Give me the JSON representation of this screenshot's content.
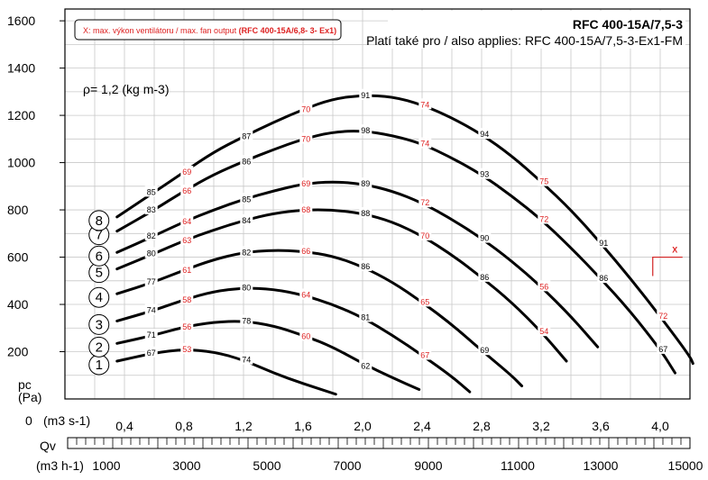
{
  "header": {
    "model": "RFC 400-15A/7,5-3",
    "also_applies": "Platí také pro / also applies: RFC 400-15A/7,5-3-Ex1-FM",
    "note_prefix": "X: max. výkon ventilátoru / max. fan output",
    "note_model": "(RFC 400-15A/6,8- 3- Ex1)"
  },
  "density_label": "ρ= 1,2 (kg m-3)",
  "axes": {
    "y_label_main": "pc",
    "y_label_unit": "(Pa)",
    "x1_unit": "(m3 s-1)",
    "x2_label": "Qv",
    "x3_unit": "(m3 h-1)",
    "zero_label": "0"
  },
  "chart_data": {
    "type": "line",
    "title": "RFC 400-15A/7,5-3",
    "xlabel": "Qv (m3 s-1)",
    "ylabel": "pc (Pa)",
    "xlim": [
      0,
      4.2
    ],
    "ylim": [
      0,
      1650
    ],
    "x_ticks": [
      "0,4",
      "0,8",
      "1,2",
      "1,6",
      "2,0",
      "2,4",
      "2,8",
      "3,2",
      "3,6",
      "4,0"
    ],
    "y_ticks": [
      "200",
      "400",
      "600",
      "800",
      "1000",
      "1200",
      "1400",
      "1600"
    ],
    "x_ticks_m3h": [
      "1000",
      "3000",
      "5000",
      "7000",
      "9000",
      "11000",
      "13000",
      "15000"
    ],
    "series": [
      {
        "name": "1",
        "points": [
          [
            0.35,
            160
          ],
          [
            0.6,
            195
          ],
          [
            0.8,
            210
          ],
          [
            1.0,
            200
          ],
          [
            1.2,
            165
          ],
          [
            1.4,
            110
          ],
          [
            1.6,
            65
          ],
          [
            1.82,
            20
          ]
        ]
      },
      {
        "name": "2",
        "points": [
          [
            0.35,
            235
          ],
          [
            0.6,
            270
          ],
          [
            0.8,
            305
          ],
          [
            1.0,
            325
          ],
          [
            1.2,
            330
          ],
          [
            1.4,
            310
          ],
          [
            1.6,
            270
          ],
          [
            1.8,
            220
          ],
          [
            2.0,
            150
          ],
          [
            2.2,
            90
          ],
          [
            2.38,
            40
          ]
        ]
      },
      {
        "name": "3",
        "points": [
          [
            0.35,
            330
          ],
          [
            0.6,
            375
          ],
          [
            0.8,
            420
          ],
          [
            1.0,
            455
          ],
          [
            1.2,
            470
          ],
          [
            1.4,
            465
          ],
          [
            1.6,
            440
          ],
          [
            1.8,
            400
          ],
          [
            2.0,
            345
          ],
          [
            2.2,
            270
          ],
          [
            2.4,
            185
          ],
          [
            2.6,
            95
          ],
          [
            2.72,
            30
          ]
        ]
      },
      {
        "name": "4",
        "points": [
          [
            0.35,
            445
          ],
          [
            0.6,
            495
          ],
          [
            0.8,
            545
          ],
          [
            1.0,
            590
          ],
          [
            1.2,
            620
          ],
          [
            1.4,
            630
          ],
          [
            1.6,
            625
          ],
          [
            1.8,
            605
          ],
          [
            2.0,
            560
          ],
          [
            2.2,
            495
          ],
          [
            2.4,
            410
          ],
          [
            2.6,
            315
          ],
          [
            2.8,
            205
          ],
          [
            3.0,
            100
          ],
          [
            3.07,
            55
          ]
        ]
      },
      {
        "name": "5",
        "points": [
          [
            0.35,
            550
          ],
          [
            0.6,
            615
          ],
          [
            0.8,
            670
          ],
          [
            1.0,
            715
          ],
          [
            1.2,
            755
          ],
          [
            1.4,
            785
          ],
          [
            1.6,
            800
          ],
          [
            1.8,
            800
          ],
          [
            2.0,
            785
          ],
          [
            2.2,
            750
          ],
          [
            2.4,
            690
          ],
          [
            2.6,
            610
          ],
          [
            2.8,
            515
          ],
          [
            3.0,
            410
          ],
          [
            3.2,
            285
          ],
          [
            3.37,
            160
          ]
        ]
      },
      {
        "name": "6",
        "points": [
          [
            0.35,
            620
          ],
          [
            0.6,
            690
          ],
          [
            0.8,
            750
          ],
          [
            1.0,
            800
          ],
          [
            1.2,
            845
          ],
          [
            1.4,
            880
          ],
          [
            1.6,
            910
          ],
          [
            1.8,
            920
          ],
          [
            2.0,
            910
          ],
          [
            2.2,
            880
          ],
          [
            2.4,
            830
          ],
          [
            2.6,
            760
          ],
          [
            2.8,
            680
          ],
          [
            3.0,
            585
          ],
          [
            3.2,
            475
          ],
          [
            3.4,
            350
          ],
          [
            3.58,
            220
          ]
        ]
      },
      {
        "name": "7",
        "points": [
          [
            0.35,
            710
          ],
          [
            0.6,
            800
          ],
          [
            0.8,
            880
          ],
          [
            1.0,
            950
          ],
          [
            1.2,
            1005
          ],
          [
            1.4,
            1055
          ],
          [
            1.6,
            1100
          ],
          [
            1.8,
            1130
          ],
          [
            2.0,
            1135
          ],
          [
            2.2,
            1115
          ],
          [
            2.4,
            1080
          ],
          [
            2.6,
            1020
          ],
          [
            2.8,
            950
          ],
          [
            3.0,
            860
          ],
          [
            3.2,
            760
          ],
          [
            3.4,
            640
          ],
          [
            3.6,
            510
          ],
          [
            3.8,
            370
          ],
          [
            4.0,
            210
          ],
          [
            4.1,
            110
          ]
        ]
      },
      {
        "name": "8",
        "points": [
          [
            0.35,
            770
          ],
          [
            0.6,
            875
          ],
          [
            0.8,
            960
          ],
          [
            1.0,
            1045
          ],
          [
            1.2,
            1110
          ],
          [
            1.4,
            1170
          ],
          [
            1.6,
            1225
          ],
          [
            1.8,
            1270
          ],
          [
            2.0,
            1285
          ],
          [
            2.2,
            1280
          ],
          [
            2.4,
            1245
          ],
          [
            2.6,
            1190
          ],
          [
            2.8,
            1120
          ],
          [
            3.0,
            1030
          ],
          [
            3.2,
            920
          ],
          [
            3.4,
            800
          ],
          [
            3.6,
            660
          ],
          [
            3.8,
            510
          ],
          [
            4.0,
            350
          ],
          [
            4.2,
            180
          ],
          [
            4.22,
            150
          ]
        ]
      }
    ],
    "labels": [
      {
        "x": 0.58,
        "y": 195,
        "t": "67",
        "c": "k"
      },
      {
        "x": 0.82,
        "y": 210,
        "t": "53",
        "c": "r"
      },
      {
        "x": 1.22,
        "y": 165,
        "t": "74",
        "c": "k"
      },
      {
        "x": 0.58,
        "y": 270,
        "t": "71",
        "c": "k"
      },
      {
        "x": 0.82,
        "y": 305,
        "t": "56",
        "c": "r"
      },
      {
        "x": 1.22,
        "y": 330,
        "t": "78",
        "c": "k"
      },
      {
        "x": 1.62,
        "y": 265,
        "t": "60",
        "c": "r"
      },
      {
        "x": 2.02,
        "y": 140,
        "t": "62",
        "c": "k"
      },
      {
        "x": 0.58,
        "y": 375,
        "t": "74",
        "c": "k"
      },
      {
        "x": 0.82,
        "y": 420,
        "t": "58",
        "c": "r"
      },
      {
        "x": 1.22,
        "y": 470,
        "t": "80",
        "c": "k"
      },
      {
        "x": 1.62,
        "y": 440,
        "t": "64",
        "c": "r"
      },
      {
        "x": 2.02,
        "y": 345,
        "t": "81",
        "c": "k"
      },
      {
        "x": 2.42,
        "y": 185,
        "t": "67",
        "c": "r"
      },
      {
        "x": 0.58,
        "y": 495,
        "t": "77",
        "c": "k"
      },
      {
        "x": 0.82,
        "y": 545,
        "t": "61",
        "c": "r"
      },
      {
        "x": 1.22,
        "y": 620,
        "t": "82",
        "c": "k"
      },
      {
        "x": 1.62,
        "y": 625,
        "t": "66",
        "c": "r"
      },
      {
        "x": 2.02,
        "y": 560,
        "t": "86",
        "c": "k"
      },
      {
        "x": 2.42,
        "y": 410,
        "t": "65",
        "c": "r"
      },
      {
        "x": 2.82,
        "y": 205,
        "t": "69",
        "c": "k"
      },
      {
        "x": 0.58,
        "y": 615,
        "t": "80",
        "c": "k"
      },
      {
        "x": 0.82,
        "y": 670,
        "t": "63",
        "c": "r"
      },
      {
        "x": 1.22,
        "y": 755,
        "t": "84",
        "c": "k"
      },
      {
        "x": 1.62,
        "y": 800,
        "t": "68",
        "c": "r"
      },
      {
        "x": 2.02,
        "y": 785,
        "t": "88",
        "c": "k"
      },
      {
        "x": 2.42,
        "y": 690,
        "t": "70",
        "c": "r"
      },
      {
        "x": 2.82,
        "y": 515,
        "t": "86",
        "c": "k"
      },
      {
        "x": 3.22,
        "y": 285,
        "t": "54",
        "c": "r"
      },
      {
        "x": 0.58,
        "y": 690,
        "t": "82",
        "c": "k"
      },
      {
        "x": 0.82,
        "y": 750,
        "t": "64",
        "c": "r"
      },
      {
        "x": 1.22,
        "y": 845,
        "t": "85",
        "c": "k"
      },
      {
        "x": 1.62,
        "y": 910,
        "t": "69",
        "c": "r"
      },
      {
        "x": 2.02,
        "y": 910,
        "t": "89",
        "c": "k"
      },
      {
        "x": 2.42,
        "y": 830,
        "t": "72",
        "c": "r"
      },
      {
        "x": 2.82,
        "y": 680,
        "t": "90",
        "c": "k"
      },
      {
        "x": 3.22,
        "y": 475,
        "t": "56",
        "c": "r"
      },
      {
        "x": 0.58,
        "y": 800,
        "t": "83",
        "c": "k"
      },
      {
        "x": 0.82,
        "y": 880,
        "t": "66",
        "c": "r"
      },
      {
        "x": 1.22,
        "y": 1005,
        "t": "86",
        "c": "k"
      },
      {
        "x": 1.62,
        "y": 1100,
        "t": "70",
        "c": "r"
      },
      {
        "x": 2.02,
        "y": 1135,
        "t": "98",
        "c": "k"
      },
      {
        "x": 2.42,
        "y": 1080,
        "t": "74",
        "c": "r"
      },
      {
        "x": 2.82,
        "y": 950,
        "t": "93",
        "c": "k"
      },
      {
        "x": 3.22,
        "y": 760,
        "t": "72",
        "c": "r"
      },
      {
        "x": 3.62,
        "y": 510,
        "t": "86",
        "c": "k"
      },
      {
        "x": 4.02,
        "y": 210,
        "t": "67",
        "c": "k"
      },
      {
        "x": 0.58,
        "y": 875,
        "t": "85",
        "c": "k"
      },
      {
        "x": 0.82,
        "y": 960,
        "t": "69",
        "c": "r"
      },
      {
        "x": 1.22,
        "y": 1110,
        "t": "87",
        "c": "k"
      },
      {
        "x": 1.62,
        "y": 1225,
        "t": "70",
        "c": "r"
      },
      {
        "x": 2.02,
        "y": 1285,
        "t": "91",
        "c": "k"
      },
      {
        "x": 2.42,
        "y": 1245,
        "t": "74",
        "c": "r"
      },
      {
        "x": 2.82,
        "y": 1120,
        "t": "94",
        "c": "k"
      },
      {
        "x": 3.22,
        "y": 920,
        "t": "75",
        "c": "r"
      },
      {
        "x": 3.62,
        "y": 660,
        "t": "91",
        "c": "k"
      },
      {
        "x": 4.02,
        "y": 350,
        "t": "72",
        "c": "r"
      }
    ],
    "max_point_label": "X",
    "colors": {
      "curve": "#000000",
      "red_label": "#d22222",
      "grid": "#c8c8c8",
      "note_red": "#d22222"
    }
  }
}
